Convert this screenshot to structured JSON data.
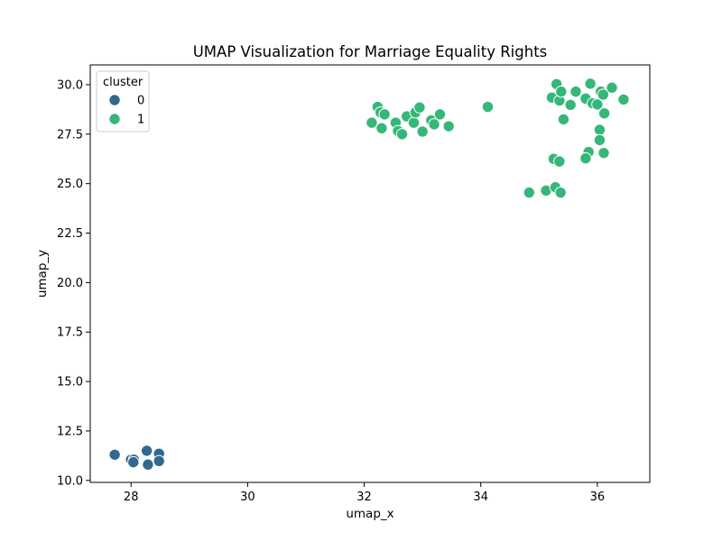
{
  "chart_data": {
    "type": "scatter",
    "title": "UMAP Visualization for Marriage Equality Rights",
    "xlabel": "umap_x",
    "ylabel": "umap_y",
    "xlim": [
      27.3,
      36.9
    ],
    "ylim": [
      9.9,
      31.0
    ],
    "xticks": [
      28,
      30,
      32,
      34,
      36
    ],
    "yticks": [
      10.0,
      12.5,
      15.0,
      17.5,
      20.0,
      22.5,
      25.0,
      27.5,
      30.0
    ],
    "ytick_labels": [
      "10.0",
      "12.5",
      "15.0",
      "17.5",
      "20.0",
      "22.5",
      "25.0",
      "27.5",
      "30.0"
    ],
    "grid": false,
    "legend": {
      "title": "cluster",
      "position": "top-left",
      "entries": [
        {
          "label": "0",
          "color": "#31688e"
        },
        {
          "label": "1",
          "color": "#35b779"
        }
      ]
    },
    "series": [
      {
        "name": "0",
        "color": "#31688e",
        "points": [
          [
            27.72,
            11.3
          ],
          [
            28.0,
            11.05
          ],
          [
            28.05,
            11.05
          ],
          [
            28.04,
            10.92
          ],
          [
            28.27,
            11.5
          ],
          [
            28.48,
            11.35
          ],
          [
            28.48,
            10.98
          ],
          [
            28.29,
            10.8
          ]
        ]
      },
      {
        "name": "1",
        "color": "#35b779",
        "points": [
          [
            32.13,
            28.08
          ],
          [
            32.23,
            28.88
          ],
          [
            32.28,
            28.6
          ],
          [
            32.35,
            28.5
          ],
          [
            32.3,
            27.8
          ],
          [
            32.54,
            28.08
          ],
          [
            32.58,
            27.66
          ],
          [
            32.65,
            27.5
          ],
          [
            32.73,
            28.4
          ],
          [
            32.85,
            28.08
          ],
          [
            32.88,
            28.6
          ],
          [
            32.95,
            28.85
          ],
          [
            33.0,
            27.63
          ],
          [
            33.15,
            28.2
          ],
          [
            33.2,
            28.0
          ],
          [
            33.3,
            28.5
          ],
          [
            33.45,
            27.9
          ],
          [
            34.12,
            28.88
          ],
          [
            35.22,
            29.35
          ],
          [
            35.3,
            30.03
          ],
          [
            35.35,
            29.2
          ],
          [
            35.38,
            29.65
          ],
          [
            35.42,
            28.25
          ],
          [
            35.54,
            28.98
          ],
          [
            35.63,
            29.65
          ],
          [
            35.8,
            29.3
          ],
          [
            35.88,
            30.05
          ],
          [
            35.92,
            29.06
          ],
          [
            36.0,
            29.0
          ],
          [
            36.06,
            29.65
          ],
          [
            36.12,
            28.55
          ],
          [
            36.1,
            29.5
          ],
          [
            36.25,
            29.85
          ],
          [
            36.45,
            29.25
          ],
          [
            36.04,
            27.72
          ],
          [
            36.04,
            27.2
          ],
          [
            36.11,
            26.55
          ],
          [
            35.85,
            26.6
          ],
          [
            35.8,
            26.28
          ],
          [
            35.25,
            26.25
          ],
          [
            35.35,
            26.12
          ],
          [
            34.83,
            24.55
          ],
          [
            35.12,
            24.65
          ],
          [
            35.28,
            24.82
          ],
          [
            35.37,
            24.55
          ]
        ]
      }
    ]
  }
}
